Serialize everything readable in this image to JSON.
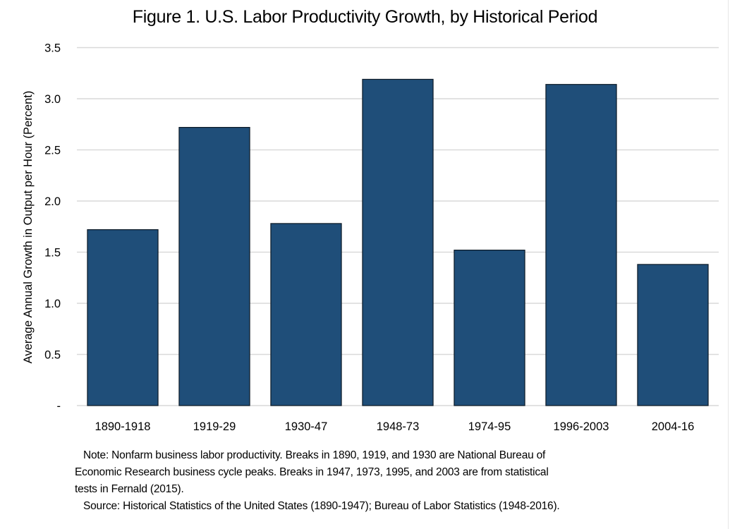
{
  "chart_data": {
    "type": "bar",
    "title": "Figure 1.  U.S. Labor Productivity Growth, by Historical Period",
    "xlabel": "",
    "ylabel": "Average Annual Growth in Output per Hour (Percent)",
    "categories": [
      "1890-1918",
      "1919-29",
      "1930-47",
      "1948-73",
      "1974-95",
      "1996-2003",
      "2004-16"
    ],
    "values": [
      1.72,
      2.72,
      1.78,
      3.19,
      1.52,
      3.14,
      1.38
    ],
    "ylim": [
      0,
      3.5
    ],
    "yticks": [
      0,
      0.5,
      1.0,
      1.5,
      2.0,
      2.5,
      3.0,
      3.5
    ],
    "ytick_labels": [
      "-",
      "0.5",
      "1.0",
      "1.5",
      "2.0",
      "2.5",
      "3.0",
      "3.5"
    ],
    "grid": true,
    "legend": "none",
    "colors": {
      "bar": "#1F4E79",
      "bar_border": "#0d1a26",
      "grid": "#d9d9d9"
    }
  },
  "notes": {
    "line1": "Note:  Nonfarm business labor productivity.  Breaks in 1890, 1919, and 1930 are National Bureau of",
    "line2": "Economic Research business cycle peaks.  Breaks in 1947, 1973, 1995, and 2003 are from statistical",
    "line3": "tests in Fernald (2015).",
    "source": "Source:  Historical Statistics of the United States (1890-1947); Bureau of Labor Statistics (1948-2016)."
  }
}
